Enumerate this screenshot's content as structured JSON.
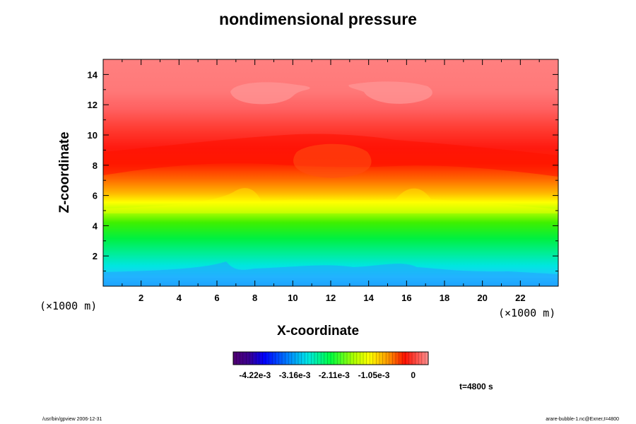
{
  "chart_data": {
    "type": "heatmap",
    "title": "nondimensional pressure",
    "xlabel": "X-coordinate",
    "ylabel": "Z-coordinate",
    "x_unit": "(×1000 m)",
    "y_unit": "(×1000 m)",
    "xlim": [
      0,
      24
    ],
    "ylim": [
      0,
      15
    ],
    "x_ticks": [
      2,
      4,
      6,
      8,
      10,
      12,
      14,
      16,
      18,
      20,
      22
    ],
    "y_ticks": [
      2,
      4,
      6,
      8,
      10,
      12,
      14
    ],
    "colorbar": {
      "min": -0.0048,
      "max": 0.0004,
      "tick_values": [
        -0.00422,
        -0.00316,
        -0.00211,
        -0.00105,
        0
      ],
      "tick_labels": [
        "-4.22e-3",
        "-3.16e-3",
        "-2.11e-3",
        "-1.05e-3",
        "0"
      ],
      "colormap": "rainbow (purple-blue-cyan-green-yellow-red-pink)"
    },
    "annotations": {
      "time": "t=4800 s"
    }
  },
  "footer": {
    "left": "/usr/bin/gpview 2006-12-31",
    "right": "arare-bubble-1.nc@Exner,t=4800"
  },
  "colors": {
    "axis": "#000000",
    "background": "#ffffff"
  }
}
